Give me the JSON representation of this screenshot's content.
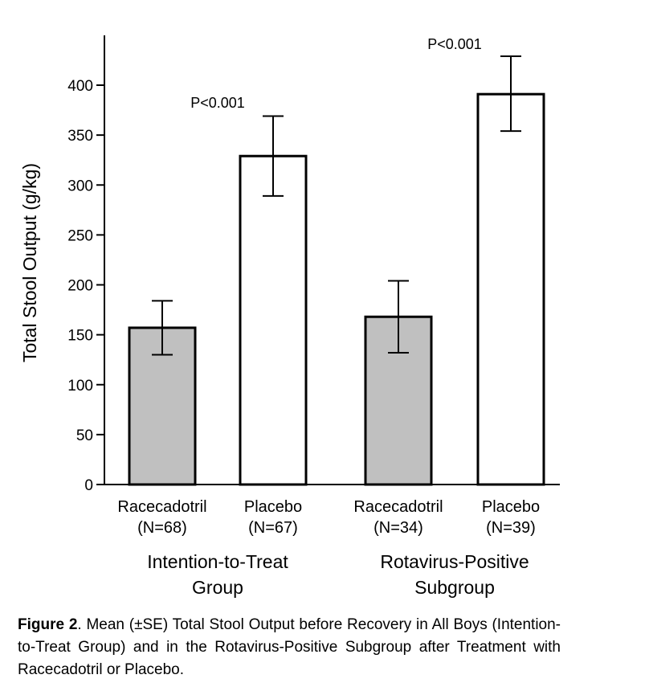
{
  "chart_data": {
    "type": "bar",
    "ylabel": "Total Stool Output (g/kg)",
    "ylim": [
      0,
      450
    ],
    "yticks": [
      0,
      50,
      100,
      150,
      200,
      250,
      300,
      350,
      400
    ],
    "grid": false,
    "bars": [
      {
        "label": "Racecadotril",
        "n": "(N=68)",
        "group": 0,
        "value": 157,
        "err_low": 130,
        "err_high": 184,
        "fill": "#c0c0c0"
      },
      {
        "label": "Placebo",
        "n": "(N=67)",
        "group": 0,
        "value": 329,
        "err_low": 289,
        "err_high": 369,
        "fill": "#ffffff"
      },
      {
        "label": "Racecadotril",
        "n": "(N=34)",
        "group": 1,
        "value": 168,
        "err_low": 132,
        "err_high": 204,
        "fill": "#c0c0c0"
      },
      {
        "label": "Placebo",
        "n": "(N=39)",
        "group": 1,
        "value": 391,
        "err_low": 354,
        "err_high": 429,
        "fill": "#ffffff"
      }
    ],
    "groups": [
      {
        "line1": "Intention-to-Treat",
        "line2": "Group"
      },
      {
        "line1": "Rotavirus-Positive",
        "line2": "Subgroup"
      }
    ],
    "annotations": [
      "P<0.001",
      "P<0.001"
    ]
  },
  "caption": {
    "label": "Figure 2",
    "text": ". Mean (±SE) Total Stool Output before Recovery in All Boys (Intention-to-Treat Group) and in the Rotavirus-Positive Subgroup after Treatment with Racecadotril or Placebo."
  }
}
